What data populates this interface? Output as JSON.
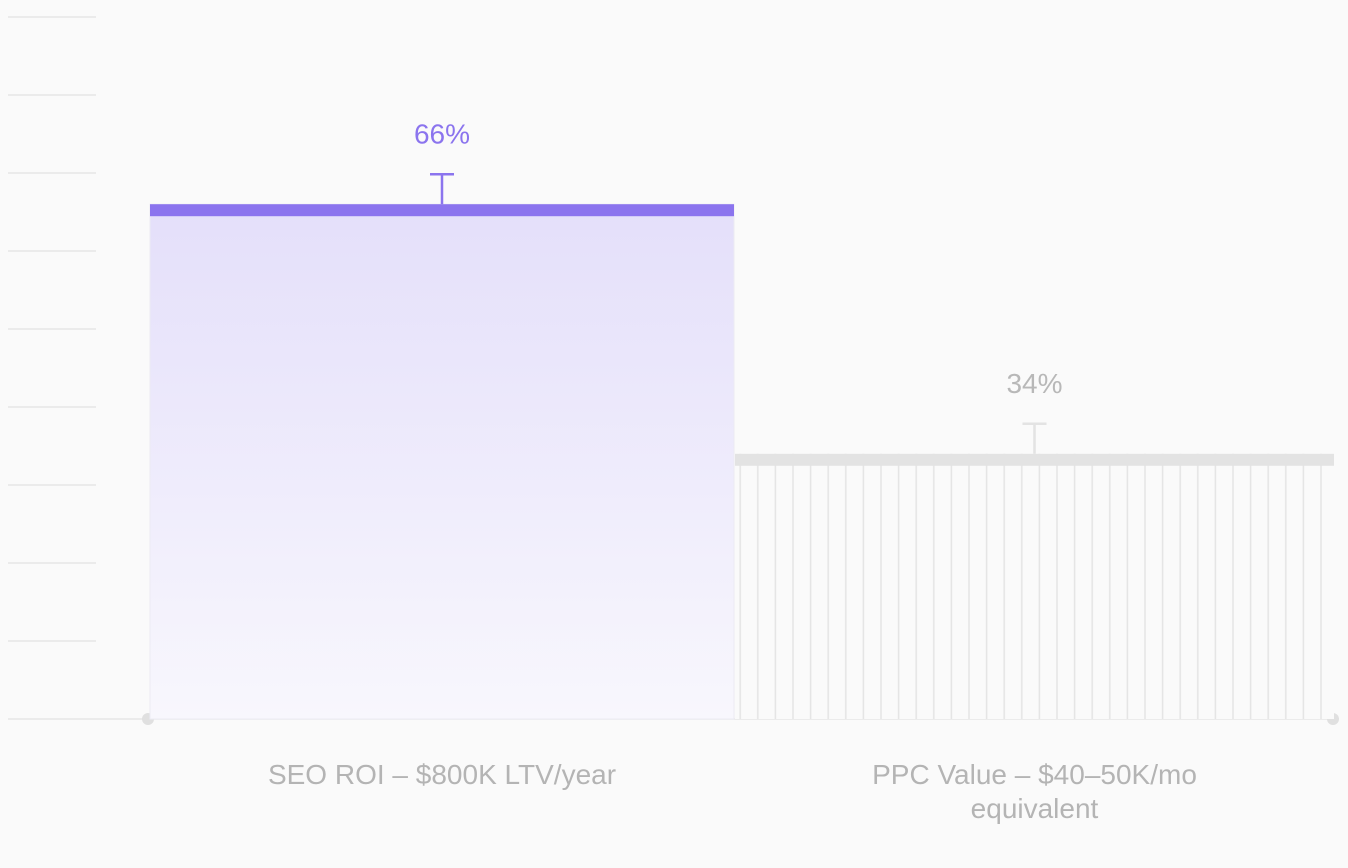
{
  "chart_data": {
    "type": "bar",
    "categories": [
      "SEO ROI – $800K LTV/year",
      "PPC Value – $40–50K/mo equivalent"
    ],
    "values": [
      66,
      34
    ],
    "value_labels": [
      "66%",
      "34%"
    ],
    "colors": [
      "#8b74ee",
      "#e3e3e3"
    ],
    "ylim": [
      0,
      90
    ],
    "yticks": [
      0,
      10,
      20,
      30,
      40,
      50,
      60,
      70,
      80,
      90
    ],
    "grid": true
  }
}
